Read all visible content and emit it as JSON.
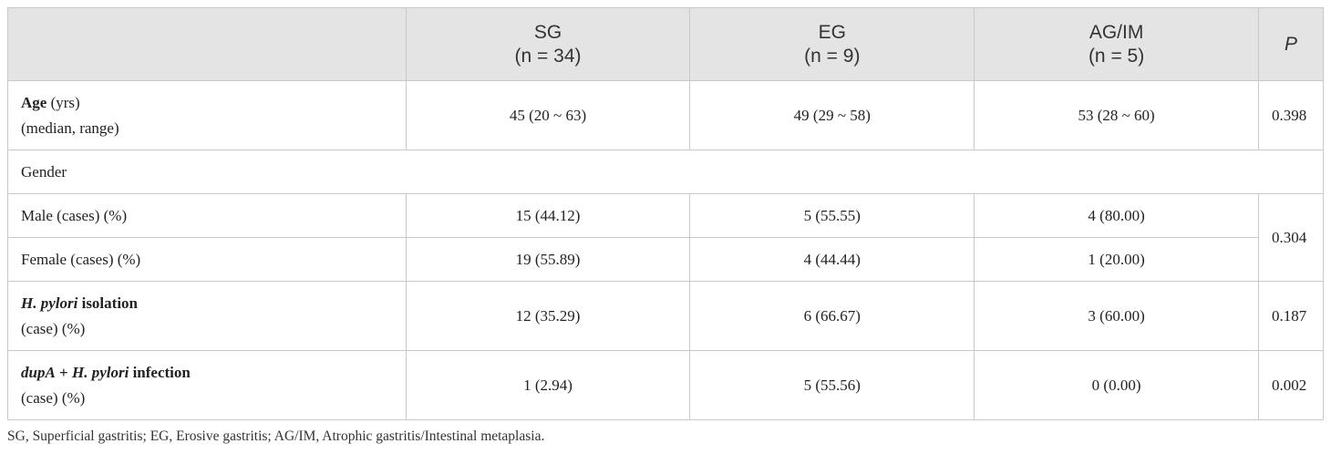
{
  "table": {
    "header": {
      "groups": [
        "SG",
        "EG",
        "AG/IM"
      ],
      "ns": [
        "(n = 34)",
        "(n = 9)",
        "(n = 5)"
      ],
      "p": "P"
    },
    "rows": [
      {
        "label_bold": "Age",
        "label": "(yrs)",
        "label_line2": "(median, range)",
        "values": [
          "45 (20 ~ 63)",
          "49 (29 ~ 58)",
          "53 (28 ~ 60)"
        ],
        "p": "0.398"
      },
      {
        "label": "Gender"
      },
      {
        "label": "Male (cases) (%)",
        "values": [
          "15 (44.12)",
          "5 (55.55)",
          "4 (80.00)"
        ],
        "p": "0.304"
      },
      {
        "label": "Female (cases) (%)",
        "values": [
          "19 (55.89)",
          "4 (44.44)",
          "1 (20.00)"
        ]
      },
      {
        "label_italic": "H. pylori",
        "label_bold": "isolation",
        "label_line2": "(case) (%)",
        "values": [
          "12 (35.29)",
          "6 (66.67)",
          "3 (60.00)"
        ],
        "p": "0.187"
      },
      {
        "label_italic": "dupA",
        "label_bold": "+",
        "label_italic2": "H. pylori",
        "label_bold2": "infection",
        "label_line2": "(case) (%)",
        "values": [
          "1 (2.94)",
          "5 (55.56)",
          "0 (0.00)"
        ],
        "p": "0.002"
      }
    ],
    "footnote": "SG, Superficial gastritis; EG, Erosive gastritis; AG/IM, Atrophic gastritis/Intestinal metaplasia."
  }
}
